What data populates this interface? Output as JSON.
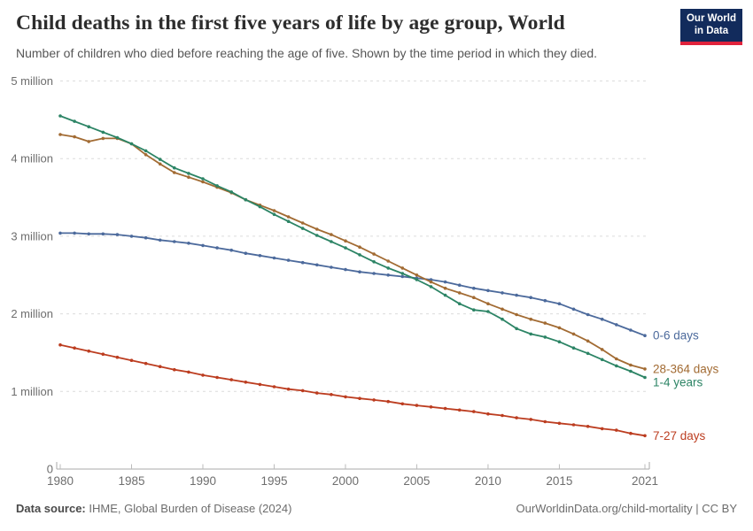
{
  "header": {
    "title": "Child deaths in the first five years of life by age group, World",
    "subtitle": "Number of children who died before reaching the age of five. Shown by the time period in which they died.",
    "logo": {
      "line1": "Our World",
      "line2": "in Data",
      "bg_color": "#122B5C",
      "accent_color": "#E0233C"
    }
  },
  "chart_data": {
    "type": "line",
    "title": "Child deaths in the first five years of life by age group, World",
    "xlabel": "",
    "ylabel": "",
    "values_unit": "millions of deaths",
    "grid": "horizontal-dashed",
    "legend_position": "line-end-labels",
    "ylim": [
      0,
      5
    ],
    "xlim": [
      1980,
      2021
    ],
    "xticks": [
      1980,
      1985,
      1990,
      1995,
      2000,
      2005,
      2010,
      2015,
      2021
    ],
    "yticks": [
      {
        "value": 0,
        "label": "0"
      },
      {
        "value": 1,
        "label": "1 million"
      },
      {
        "value": 2,
        "label": "2 million"
      },
      {
        "value": 3,
        "label": "3 million"
      },
      {
        "value": 4,
        "label": "4 million"
      },
      {
        "value": 5,
        "label": "5 million"
      }
    ],
    "x": [
      1980,
      1981,
      1982,
      1983,
      1984,
      1985,
      1986,
      1987,
      1988,
      1989,
      1990,
      1991,
      1992,
      1993,
      1994,
      1995,
      1996,
      1997,
      1998,
      1999,
      2000,
      2001,
      2002,
      2003,
      2004,
      2005,
      2006,
      2007,
      2008,
      2009,
      2010,
      2011,
      2012,
      2013,
      2014,
      2015,
      2016,
      2017,
      2018,
      2019,
      2020,
      2021
    ],
    "series": [
      {
        "name": "0-6 days",
        "color": "#4C6A9C",
        "values": [
          3.04,
          3.04,
          3.03,
          3.03,
          3.02,
          3.0,
          2.98,
          2.95,
          2.93,
          2.91,
          2.88,
          2.85,
          2.82,
          2.78,
          2.75,
          2.72,
          2.69,
          2.66,
          2.63,
          2.6,
          2.57,
          2.54,
          2.52,
          2.5,
          2.48,
          2.46,
          2.44,
          2.41,
          2.37,
          2.33,
          2.3,
          2.27,
          2.24,
          2.21,
          2.17,
          2.13,
          2.06,
          1.99,
          1.93,
          1.86,
          1.79,
          1.72
        ]
      },
      {
        "name": "28-364 days",
        "color": "#A26B33",
        "values": [
          4.31,
          4.28,
          4.22,
          4.26,
          4.26,
          4.19,
          4.05,
          3.93,
          3.82,
          3.76,
          3.7,
          3.63,
          3.56,
          3.47,
          3.4,
          3.33,
          3.25,
          3.17,
          3.09,
          3.02,
          2.94,
          2.86,
          2.77,
          2.68,
          2.59,
          2.5,
          2.41,
          2.33,
          2.27,
          2.21,
          2.13,
          2.06,
          1.99,
          1.93,
          1.88,
          1.82,
          1.74,
          1.65,
          1.54,
          1.42,
          1.34,
          1.29
        ]
      },
      {
        "name": "1-4 years",
        "color": "#2C8465",
        "values": [
          4.55,
          4.48,
          4.41,
          4.34,
          4.27,
          4.19,
          4.1,
          3.99,
          3.88,
          3.81,
          3.74,
          3.65,
          3.57,
          3.47,
          3.38,
          3.28,
          3.19,
          3.1,
          3.01,
          2.93,
          2.85,
          2.76,
          2.67,
          2.59,
          2.52,
          2.44,
          2.35,
          2.24,
          2.13,
          2.05,
          2.03,
          1.93,
          1.81,
          1.74,
          1.7,
          1.64,
          1.56,
          1.49,
          1.41,
          1.33,
          1.26,
          1.18
        ]
      },
      {
        "name": "7-27 days",
        "color": "#BC3D20",
        "values": [
          1.6,
          1.56,
          1.52,
          1.48,
          1.44,
          1.4,
          1.36,
          1.32,
          1.28,
          1.25,
          1.21,
          1.18,
          1.15,
          1.12,
          1.09,
          1.06,
          1.03,
          1.01,
          0.98,
          0.96,
          0.93,
          0.91,
          0.89,
          0.87,
          0.84,
          0.82,
          0.8,
          0.78,
          0.76,
          0.74,
          0.71,
          0.69,
          0.66,
          0.64,
          0.61,
          0.59,
          0.57,
          0.55,
          0.52,
          0.5,
          0.46,
          0.43
        ]
      }
    ]
  },
  "footer": {
    "source_label": "Data source:",
    "source_text": "IHME, Global Burden of Disease (2024)",
    "credit": "OurWorldinData.org/child-mortality | CC BY"
  }
}
